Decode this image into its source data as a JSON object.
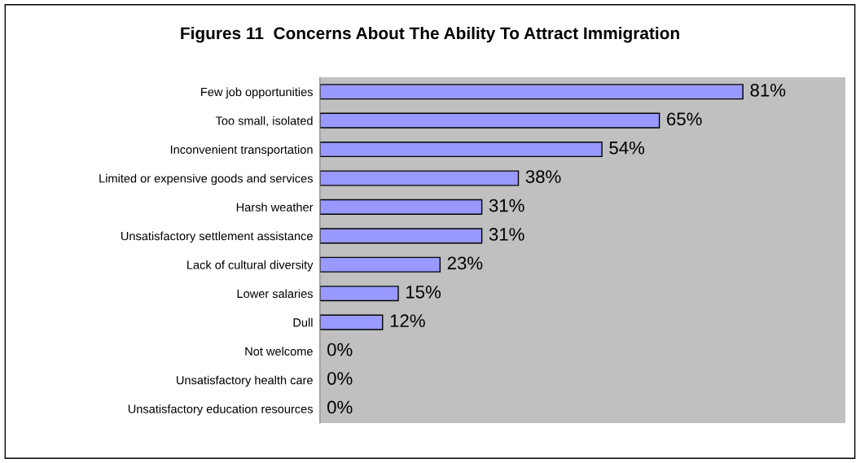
{
  "chart_data": {
    "type": "bar",
    "orientation": "horizontal",
    "title": "Figures 11  Concerns About The Ability To Attract Immigration",
    "categories": [
      "Few job opportunities",
      "Too small, isolated",
      "Inconvenient transportation",
      "Limited or expensive goods and services",
      "Harsh weather",
      "Unsatisfactory settlement assistance",
      "Lack of cultural diversity",
      "Lower salaries",
      "Dull",
      "Not welcome",
      "Unsatisfactory health care",
      "Unsatisfactory education resources"
    ],
    "values": [
      81,
      65,
      54,
      38,
      31,
      31,
      23,
      15,
      12,
      0,
      0,
      0
    ],
    "value_labels": [
      "81%",
      "65%",
      "54%",
      "38%",
      "31%",
      "31%",
      "23%",
      "15%",
      "12%",
      "0%",
      "0%",
      "0%"
    ],
    "color": "#9999ff",
    "grid": false,
    "legend": false
  }
}
